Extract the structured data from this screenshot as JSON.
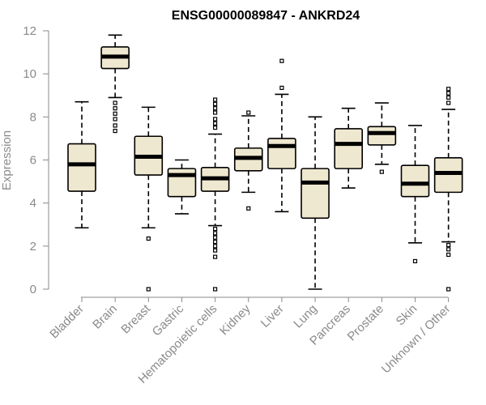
{
  "chart_data": {
    "type": "boxplot",
    "title": "ENSG00000089847 - ANKRD24",
    "xlabel": "",
    "ylabel": "Expression",
    "ylim": [
      0,
      12
    ],
    "yticks": [
      0,
      2,
      4,
      6,
      8,
      10,
      12
    ],
    "categories": [
      "Bladder",
      "Brain",
      "Breast",
      "Gastric",
      "Hematopoietic cells",
      "Kidney",
      "Liver",
      "Lung",
      "Pancreas",
      "Prostate",
      "Skin",
      "Unknown / Other"
    ],
    "box_color": "#efe8d0",
    "boxes": [
      {
        "name": "Bladder",
        "whisker_low": 2.85,
        "q1": 4.55,
        "median": 5.8,
        "q3": 6.75,
        "whisker_high": 8.7,
        "outliers": []
      },
      {
        "name": "Brain",
        "whisker_low": 8.9,
        "q1": 10.25,
        "median": 10.8,
        "q3": 11.25,
        "whisker_high": 11.8,
        "outliers": [
          8.65,
          8.4,
          8.15,
          7.9,
          7.6,
          7.35
        ]
      },
      {
        "name": "Breast",
        "whisker_low": 2.85,
        "q1": 5.3,
        "median": 6.15,
        "q3": 7.1,
        "whisker_high": 8.45,
        "outliers": [
          2.35,
          0.0
        ]
      },
      {
        "name": "Gastric",
        "whisker_low": 3.5,
        "q1": 4.3,
        "median": 5.3,
        "q3": 5.6,
        "whisker_high": 6.0,
        "outliers": []
      },
      {
        "name": "Hematopoietic cells",
        "whisker_low": 2.95,
        "q1": 4.55,
        "median": 5.15,
        "q3": 5.65,
        "whisker_high": 7.2,
        "outliers": [
          8.8,
          8.6,
          8.4,
          8.2,
          7.9,
          7.7,
          7.5,
          2.8,
          2.6,
          2.4,
          2.2,
          2.0,
          1.8,
          1.5,
          0.0
        ]
      },
      {
        "name": "Kidney",
        "whisker_low": 4.5,
        "q1": 5.5,
        "median": 6.1,
        "q3": 6.55,
        "whisker_high": 8.05,
        "outliers": [
          8.2,
          3.75
        ]
      },
      {
        "name": "Liver",
        "whisker_low": 3.6,
        "q1": 5.6,
        "median": 6.65,
        "q3": 7.0,
        "whisker_high": 9.05,
        "outliers": [
          10.6,
          9.35
        ]
      },
      {
        "name": "Lung",
        "whisker_low": 0.0,
        "q1": 3.3,
        "median": 4.95,
        "q3": 5.6,
        "whisker_high": 8.0,
        "outliers": []
      },
      {
        "name": "Pancreas",
        "whisker_low": 4.7,
        "q1": 5.6,
        "median": 6.75,
        "q3": 7.45,
        "whisker_high": 8.4,
        "outliers": []
      },
      {
        "name": "Prostate",
        "whisker_low": 5.8,
        "q1": 6.7,
        "median": 7.25,
        "q3": 7.55,
        "whisker_high": 8.65,
        "outliers": [
          5.45
        ]
      },
      {
        "name": "Skin",
        "whisker_low": 2.15,
        "q1": 4.3,
        "median": 4.9,
        "q3": 5.75,
        "whisker_high": 7.6,
        "outliers": [
          1.3
        ]
      },
      {
        "name": "Unknown / Other",
        "whisker_low": 2.2,
        "q1": 4.5,
        "median": 5.4,
        "q3": 6.1,
        "whisker_high": 8.35,
        "outliers": [
          9.3,
          9.1,
          8.9,
          8.65,
          2.05,
          1.85,
          1.6,
          0.0
        ]
      }
    ]
  }
}
